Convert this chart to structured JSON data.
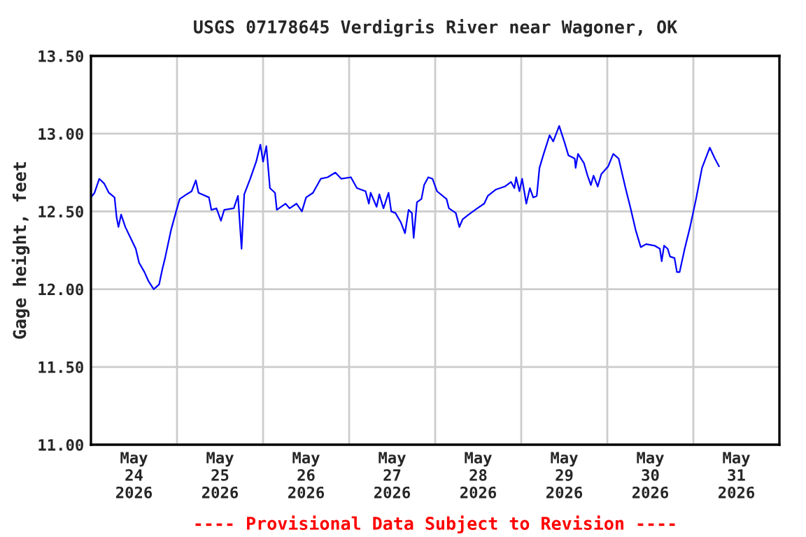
{
  "chart_data": {
    "type": "line",
    "title": "USGS 07178645 Verdigris River near Wagoner, OK",
    "ylabel": "Gage height, feet",
    "annotations": [
      "---- Provisional Data Subject to Revision ----"
    ],
    "xlim": [
      "2026-05-24T00:00",
      "2026-06-01T00:00"
    ],
    "xticks": [
      {
        "value": "2026-05-24T12:00",
        "label": "May\n24\n2026"
      },
      {
        "value": "2026-05-25T00:00",
        "label": null
      },
      {
        "value": "2026-05-25T12:00",
        "label": "May\n25\n2026"
      },
      {
        "value": "2026-05-26T00:00",
        "label": null
      },
      {
        "value": "2026-05-26T12:00",
        "label": "May\n26\n2026"
      },
      {
        "value": "2026-05-27T00:00",
        "label": null
      },
      {
        "value": "2026-05-27T12:00",
        "label": "May\n27\n2026"
      },
      {
        "value": "2026-05-28T00:00",
        "label": null
      },
      {
        "value": "2026-05-28T12:00",
        "label": "May\n28\n2026"
      },
      {
        "value": "2026-05-29T00:00",
        "label": null
      },
      {
        "value": "2026-05-29T12:00",
        "label": "May\n29\n2026"
      },
      {
        "value": "2026-05-30T00:00",
        "label": null
      },
      {
        "value": "2026-05-30T12:00",
        "label": "May\n30\n2026"
      },
      {
        "value": "2026-05-31T00:00",
        "label": null
      },
      {
        "value": "2026-05-31T12:00",
        "label": "May\n31\n2026"
      }
    ],
    "ylim": [
      11.0,
      13.5
    ],
    "yticks": [
      {
        "value": 11.0,
        "label": "11.00"
      },
      {
        "value": 11.5,
        "label": "11.50"
      },
      {
        "value": 12.0,
        "label": "12.00"
      },
      {
        "value": 12.5,
        "label": "12.50"
      },
      {
        "value": 13.0,
        "label": "13.00"
      },
      {
        "value": 13.5,
        "label": "13.50"
      }
    ],
    "grid": true,
    "marker": "none",
    "line_style": "solid",
    "series": [
      {
        "color": "#0000ff",
        "x": [
          "2026-05-24T00:00",
          "2026-05-24T01:00",
          "2026-05-24T02:20",
          "2026-05-24T03:40",
          "2026-05-24T05:00",
          "2026-05-24T06:35",
          "2026-05-24T07:10",
          "2026-05-24T07:40",
          "2026-05-24T08:25",
          "2026-05-24T09:35",
          "2026-05-24T10:50",
          "2026-05-24T12:30",
          "2026-05-24T13:25",
          "2026-05-24T14:55",
          "2026-05-24T16:05",
          "2026-05-24T17:30",
          "2026-05-24T19:00",
          "2026-05-24T19:55",
          "2026-05-24T20:40",
          "2026-05-24T22:20",
          "2026-05-24T23:45",
          "2026-05-25T00:45",
          "2026-05-25T02:40",
          "2026-05-25T04:05",
          "2026-05-25T05:15",
          "2026-05-25T06:00",
          "2026-05-25T08:55",
          "2026-05-25T09:35",
          "2026-05-25T11:00",
          "2026-05-25T12:15",
          "2026-05-25T13:10",
          "2026-05-25T15:50",
          "2026-05-25T17:00",
          "2026-05-25T18:00",
          "2026-05-25T18:45",
          "2026-05-25T20:25",
          "2026-05-25T22:05",
          "2026-05-25T23:15",
          "2026-05-26T00:00",
          "2026-05-26T00:55",
          "2026-05-26T01:55",
          "2026-05-26T03:20",
          "2026-05-26T03:50",
          "2026-05-26T06:15",
          "2026-05-26T07:25",
          "2026-05-26T09:20",
          "2026-05-26T10:50",
          "2026-05-26T12:00",
          "2026-05-26T13:55",
          "2026-05-26T16:05",
          "2026-05-26T18:00",
          "2026-05-26T20:10",
          "2026-05-26T21:50",
          "2026-05-27T00:30",
          "2026-05-27T02:10",
          "2026-05-27T04:35",
          "2026-05-27T05:30",
          "2026-05-27T06:00",
          "2026-05-27T07:40",
          "2026-05-27T08:25",
          "2026-05-27T09:35",
          "2026-05-27T11:00",
          "2026-05-27T11:45",
          "2026-05-27T12:55",
          "2026-05-27T14:25",
          "2026-05-27T15:35",
          "2026-05-27T16:35",
          "2026-05-27T17:30",
          "2026-05-27T18:00",
          "2026-05-27T18:55",
          "2026-05-27T20:10",
          "2026-05-27T20:55",
          "2026-05-27T22:05",
          "2026-05-27T23:15",
          "2026-05-28T00:30",
          "2026-05-28T03:10",
          "2026-05-28T03:50",
          "2026-05-28T05:45",
          "2026-05-28T06:45",
          "2026-05-28T07:40",
          "2026-05-28T09:20",
          "2026-05-28T11:45",
          "2026-05-28T13:40",
          "2026-05-28T14:40",
          "2026-05-28T16:50",
          "2026-05-28T19:25",
          "2026-05-28T21:10",
          "2026-05-28T22:05",
          "2026-05-28T22:35",
          "2026-05-28T23:30",
          "2026-05-29T00:15",
          "2026-05-29T01:25",
          "2026-05-29T02:25",
          "2026-05-29T03:20",
          "2026-05-29T04:20",
          "2026-05-29T05:05",
          "2026-05-29T06:15",
          "2026-05-29T07:55",
          "2026-05-29T08:55",
          "2026-05-29T10:35",
          "2026-05-29T12:00",
          "2026-05-29T13:10",
          "2026-05-29T14:55",
          "2026-05-29T15:10",
          "2026-05-29T15:50",
          "2026-05-29T17:30",
          "2026-05-29T18:30",
          "2026-05-29T19:25",
          "2026-05-29T20:10",
          "2026-05-29T21:20",
          "2026-05-29T22:20",
          "2026-05-30T00:15",
          "2026-05-30T01:40",
          "2026-05-30T03:10",
          "2026-05-30T05:05",
          "2026-05-30T06:30",
          "2026-05-30T07:55",
          "2026-05-30T09:20",
          "2026-05-30T10:50",
          "2026-05-30T13:10",
          "2026-05-30T14:40",
          "2026-05-30T15:10",
          "2026-05-30T15:50",
          "2026-05-30T16:50",
          "2026-05-30T17:30",
          "2026-05-30T18:45",
          "2026-05-30T19:25",
          "2026-05-30T20:10",
          "2026-05-30T21:35",
          "2026-05-30T23:05",
          "2026-05-31T00:45",
          "2026-05-31T02:25",
          "2026-05-31T04:35",
          "2026-05-31T06:00",
          "2026-05-31T07:10"
        ],
        "values": [
          12.59,
          12.62,
          12.71,
          12.68,
          12.62,
          12.59,
          12.46,
          12.4,
          12.48,
          12.4,
          12.34,
          12.26,
          12.17,
          12.11,
          12.05,
          12.0,
          12.03,
          12.13,
          12.2,
          12.38,
          12.5,
          12.58,
          12.61,
          12.63,
          12.7,
          12.62,
          12.59,
          12.51,
          12.52,
          12.44,
          12.51,
          12.52,
          12.6,
          12.26,
          12.61,
          12.71,
          12.82,
          12.93,
          12.82,
          12.92,
          12.65,
          12.62,
          12.51,
          12.55,
          12.52,
          12.55,
          12.5,
          12.59,
          12.62,
          12.71,
          12.72,
          12.75,
          12.71,
          12.72,
          12.65,
          12.63,
          12.55,
          12.62,
          12.53,
          12.61,
          12.52,
          12.62,
          12.5,
          12.49,
          12.43,
          12.36,
          12.51,
          12.49,
          12.33,
          12.56,
          12.58,
          12.67,
          12.72,
          12.71,
          12.63,
          12.58,
          12.52,
          12.49,
          12.4,
          12.45,
          12.48,
          12.52,
          12.55,
          12.6,
          12.64,
          12.66,
          12.69,
          12.65,
          12.72,
          12.63,
          12.71,
          12.55,
          12.65,
          12.59,
          12.6,
          12.78,
          12.87,
          12.99,
          12.95,
          13.05,
          12.95,
          12.86,
          12.84,
          12.78,
          12.87,
          12.81,
          12.73,
          12.67,
          12.73,
          12.66,
          12.74,
          12.79,
          12.87,
          12.84,
          12.65,
          12.52,
          12.38,
          12.27,
          12.29,
          12.28,
          12.26,
          12.18,
          12.28,
          12.26,
          12.21,
          12.2,
          12.11,
          12.11,
          12.26,
          12.4,
          12.58,
          12.78,
          12.91,
          12.84,
          12.79
        ]
      }
    ]
  }
}
